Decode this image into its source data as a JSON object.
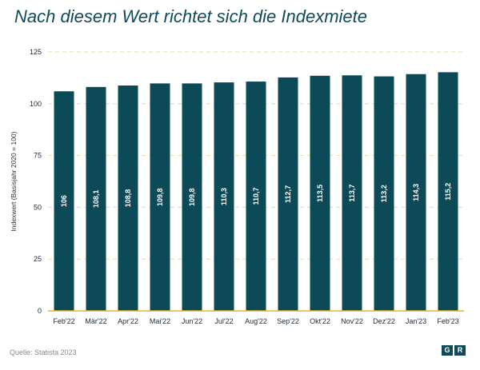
{
  "title": "Nach diesem Wert richtet sich die Indexmiete",
  "source": "Quelle: Statista 2023",
  "logo": {
    "left": "G",
    "right": "R"
  },
  "colors": {
    "bar": "#0d4a57",
    "grid": "#e9dc9e",
    "axis": "#e6b62e",
    "text": "#1f2a33",
    "title": "#0f4a5a"
  },
  "chart_data": {
    "type": "bar",
    "ylabel": "Indexwert (Basisjahr 2020 = 100)",
    "xlabel": "",
    "ylim": [
      0,
      125
    ],
    "yticks": [
      0,
      25,
      50,
      75,
      100,
      125
    ],
    "grid": true,
    "categories": [
      "Feb'22",
      "Mär'22",
      "Apr'22",
      "Mai'22",
      "Jun'22",
      "Jul'22",
      "Aug'22",
      "Sep'22",
      "Okt'22",
      "Nov'22",
      "Dez'22",
      "Jan'23",
      "Feb'23"
    ],
    "values": [
      106,
      108.1,
      108.8,
      109.8,
      109.8,
      110.3,
      110.7,
      112.7,
      113.5,
      113.7,
      113.2,
      114.3,
      115.2
    ],
    "value_labels": [
      "106",
      "108,1",
      "108,8",
      "109,8",
      "109,8",
      "110,3",
      "110,7",
      "112,7",
      "113,5",
      "113,7",
      "113,2",
      "114,3",
      "115,2"
    ]
  }
}
